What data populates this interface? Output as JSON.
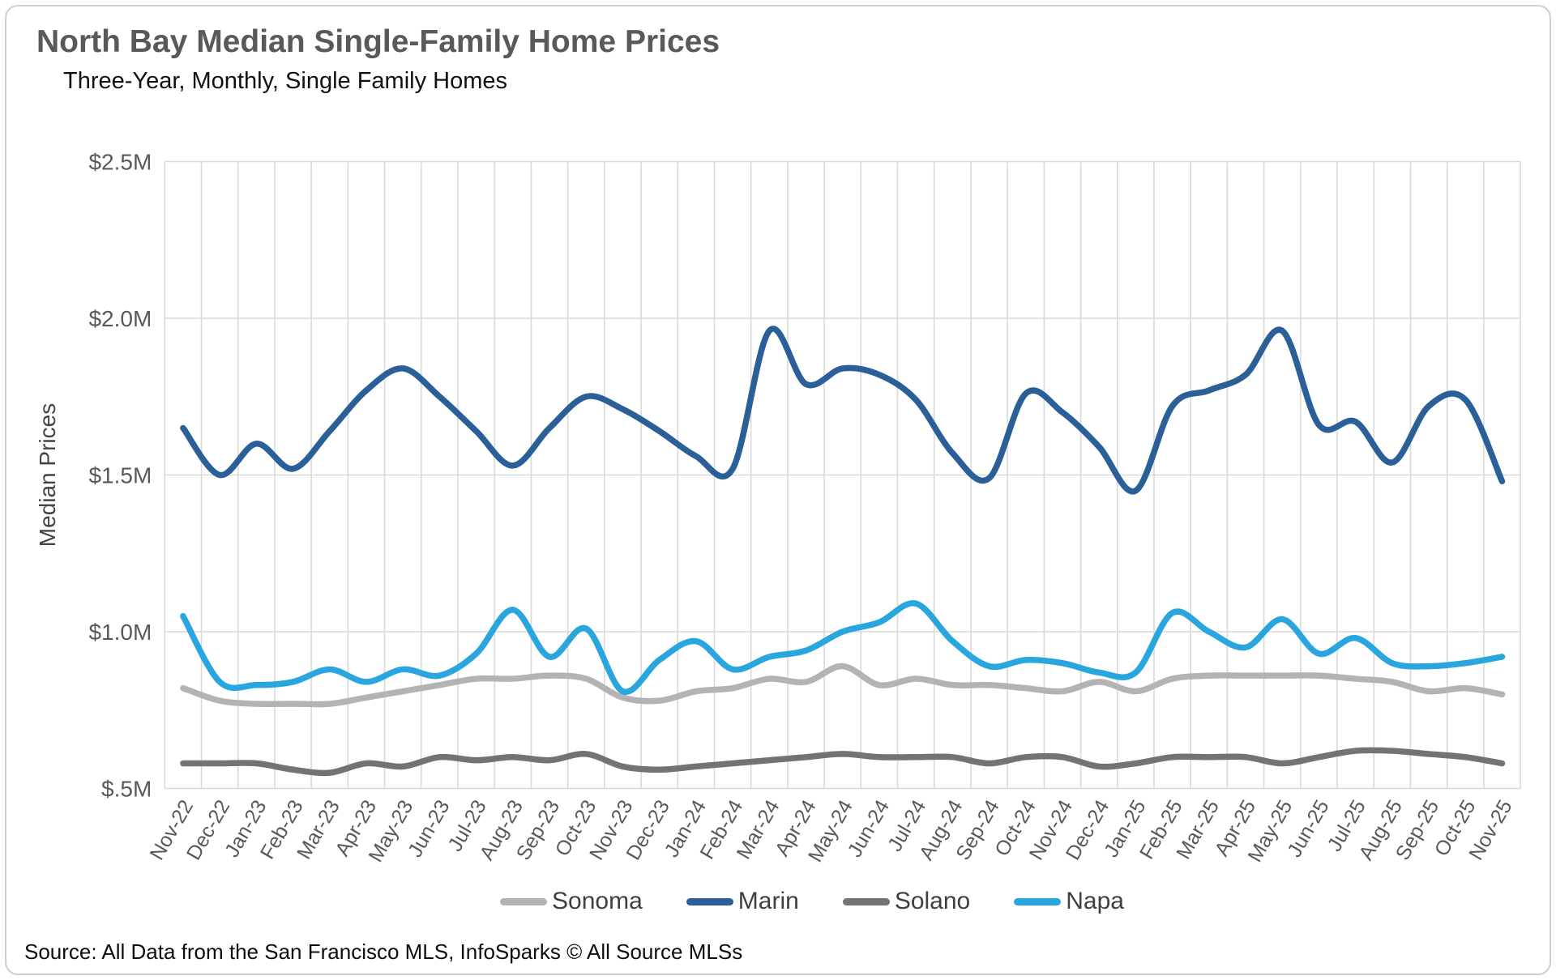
{
  "header": {
    "title": "North Bay Median Single-Family Home Prices",
    "subtitle": "Three-Year, Monthly, Single Family Homes"
  },
  "footer": {
    "source": "Source: All Data from the San Francisco MLS, InfoSparks © All Source MLSs"
  },
  "chart_data": {
    "type": "line",
    "title": "North Bay Median Single-Family Home Prices",
    "xlabel": "",
    "ylabel": "Median Prices",
    "unit": "millions USD",
    "smoothed": true,
    "grid": true,
    "legend_position": "bottom",
    "x_tick_rotation_deg": 60,
    "ylim": [
      0.5,
      2.5
    ],
    "y_ticks": [
      {
        "label": "$2.5M",
        "value": 2.5
      },
      {
        "label": "$2.0M",
        "value": 2.0
      },
      {
        "label": "$1.5M",
        "value": 1.5
      },
      {
        "label": "$1.0M",
        "value": 1.0
      },
      {
        "label": "$.5M",
        "value": 0.5
      }
    ],
    "categories": [
      "Nov-22",
      "Dec-22",
      "Jan-23",
      "Feb-23",
      "Mar-23",
      "Apr-23",
      "May-23",
      "Jun-23",
      "Jul-23",
      "Aug-23",
      "Sep-23",
      "Oct-23",
      "Nov-23",
      "Dec-23",
      "Jan-24",
      "Feb-24",
      "Mar-24",
      "Apr-24",
      "May-24",
      "Jun-24",
      "Jul-24",
      "Aug-24",
      "Sep-24",
      "Oct-24",
      "Nov-24",
      "Dec-24",
      "Jan-25",
      "Feb-25",
      "Mar-25",
      "Apr-25",
      "May-25",
      "Jun-25",
      "Jul-25",
      "Aug-25",
      "Sep-25",
      "Oct-25",
      "Nov-25"
    ],
    "series": [
      {
        "name": "Sonoma",
        "color": "#B3B3B3",
        "values": [
          0.82,
          0.78,
          0.77,
          0.77,
          0.77,
          0.79,
          0.81,
          0.83,
          0.85,
          0.85,
          0.86,
          0.85,
          0.79,
          0.78,
          0.81,
          0.82,
          0.85,
          0.84,
          0.89,
          0.83,
          0.85,
          0.83,
          0.83,
          0.82,
          0.81,
          0.84,
          0.81,
          0.85,
          0.86,
          0.86,
          0.86,
          0.86,
          0.85,
          0.84,
          0.81,
          0.82,
          0.8
        ]
      },
      {
        "name": "Marin",
        "color": "#2B5F98",
        "values": [
          1.65,
          1.5,
          1.6,
          1.52,
          1.64,
          1.77,
          1.84,
          1.75,
          1.64,
          1.53,
          1.65,
          1.75,
          1.71,
          1.64,
          1.56,
          1.52,
          1.96,
          1.79,
          1.84,
          1.82,
          1.74,
          1.57,
          1.49,
          1.76,
          1.7,
          1.59,
          1.45,
          1.72,
          1.77,
          1.82,
          1.96,
          1.66,
          1.67,
          1.54,
          1.72,
          1.74,
          1.48
        ]
      },
      {
        "name": "Solano",
        "color": "#737373",
        "values": [
          0.58,
          0.58,
          0.58,
          0.56,
          0.55,
          0.58,
          0.57,
          0.6,
          0.59,
          0.6,
          0.59,
          0.61,
          0.57,
          0.56,
          0.57,
          0.58,
          0.59,
          0.6,
          0.61,
          0.6,
          0.6,
          0.6,
          0.58,
          0.6,
          0.6,
          0.57,
          0.58,
          0.6,
          0.6,
          0.6,
          0.58,
          0.6,
          0.62,
          0.62,
          0.61,
          0.6,
          0.58
        ]
      },
      {
        "name": "Napa",
        "color": "#29A6DD",
        "values": [
          1.05,
          0.84,
          0.83,
          0.84,
          0.88,
          0.84,
          0.88,
          0.86,
          0.93,
          1.07,
          0.92,
          1.01,
          0.81,
          0.91,
          0.97,
          0.88,
          0.92,
          0.94,
          1.0,
          1.03,
          1.09,
          0.97,
          0.89,
          0.91,
          0.9,
          0.87,
          0.87,
          1.06,
          1.0,
          0.95,
          1.04,
          0.93,
          0.98,
          0.9,
          0.89,
          0.9,
          0.92
        ]
      }
    ]
  },
  "colors": {
    "grid": "#D9D9D9",
    "axis_text": "#595959",
    "title_text": "#595959",
    "legend_text": "#3F3F3F",
    "background": "#FFFFFF",
    "frame_border": "#CFCFCF"
  }
}
